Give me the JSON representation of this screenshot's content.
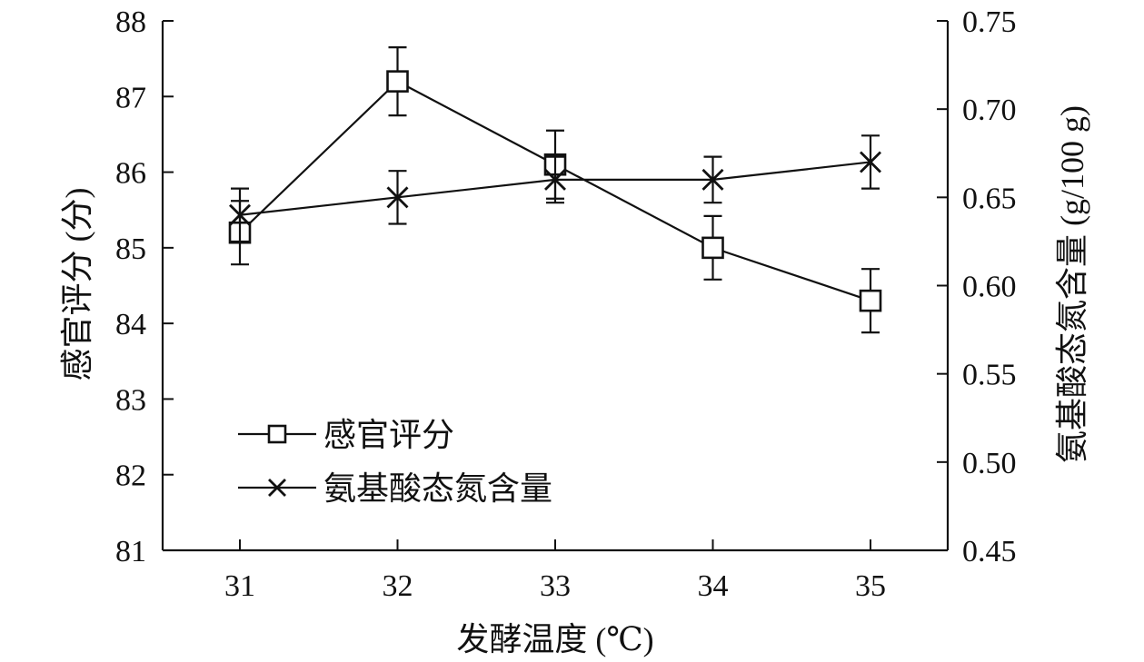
{
  "chart_data": {
    "type": "line",
    "title": "",
    "xlabel": "发酵温度 (℃)",
    "ylabel_left": "感官评分 (分)",
    "ylabel_right": "氨基酸态氮含量 (g/100 g)",
    "categories": [
      "31",
      "32",
      "33",
      "34",
      "35"
    ],
    "y_left": {
      "range": [
        81,
        88
      ],
      "ticks": [
        "81",
        "82",
        "83",
        "84",
        "85",
        "86",
        "87",
        "88"
      ]
    },
    "y_right": {
      "range": [
        0.45,
        0.75
      ],
      "ticks": [
        "0.45",
        "0.50",
        "0.55",
        "0.60",
        "0.65",
        "0.70",
        "0.75"
      ]
    },
    "grid": false,
    "legend_position": "bottom-left",
    "series": [
      {
        "name": "感官评分",
        "axis": "left",
        "marker": "square",
        "values": [
          85.2,
          87.2,
          86.1,
          85.0,
          84.3
        ],
        "errors": [
          0.42,
          0.45,
          0.45,
          0.42,
          0.42
        ]
      },
      {
        "name": "氨基酸态氮含量",
        "axis": "right",
        "marker": "x",
        "values": [
          0.64,
          0.65,
          0.66,
          0.66,
          0.67
        ],
        "errors": [
          0.015,
          0.015,
          0.013,
          0.013,
          0.015
        ]
      }
    ]
  }
}
